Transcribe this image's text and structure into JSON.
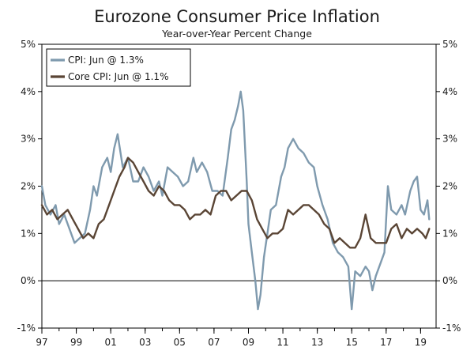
{
  "chart_data": {
    "type": "line",
    "title": "Eurozone Consumer Price Inflation",
    "subtitle": "Year-over-Year Percent Change",
    "xlabel": "",
    "ylabel": "",
    "xlim": [
      1997.0,
      2019.9
    ],
    "ylim": [
      -1,
      5
    ],
    "grid": false,
    "legend_position": "top-left",
    "y_ticks": [
      -1,
      0,
      1,
      2,
      3,
      4,
      5
    ],
    "y_tick_labels": [
      "-1%",
      "0%",
      "1%",
      "2%",
      "3%",
      "4%",
      "5%"
    ],
    "x_ticks": [
      1997,
      1999,
      2001,
      2003,
      2005,
      2007,
      2009,
      2011,
      2013,
      2015,
      2017,
      2019
    ],
    "x_tick_labels": [
      "97",
      "99",
      "01",
      "03",
      "05",
      "07",
      "09",
      "11",
      "13",
      "15",
      "17",
      "19"
    ],
    "series": [
      {
        "name": "CPI: Jun @ 1.3%",
        "color": "#7f9aae",
        "x": [
          1997.0,
          1997.2,
          1997.5,
          1997.8,
          1998.0,
          1998.3,
          1998.6,
          1998.9,
          1999.2,
          1999.5,
          1999.8,
          2000.0,
          2000.2,
          2000.5,
          2000.8,
          2001.0,
          2001.2,
          2001.4,
          2001.7,
          2002.0,
          2002.3,
          2002.6,
          2002.9,
          2003.2,
          2003.5,
          2003.8,
          2004.0,
          2004.3,
          2004.6,
          2004.9,
          2005.2,
          2005.5,
          2005.8,
          2006.0,
          2006.3,
          2006.6,
          2006.9,
          2007.2,
          2007.5,
          2007.8,
          2008.0,
          2008.2,
          2008.4,
          2008.55,
          2008.7,
          2008.9,
          2009.0,
          2009.2,
          2009.4,
          2009.55,
          2009.7,
          2009.9,
          2010.1,
          2010.3,
          2010.6,
          2010.9,
          2011.1,
          2011.3,
          2011.6,
          2011.9,
          2012.2,
          2012.5,
          2012.8,
          2013.0,
          2013.3,
          2013.6,
          2013.9,
          2014.2,
          2014.5,
          2014.8,
          2015.0,
          2015.2,
          2015.5,
          2015.8,
          2016.0,
          2016.2,
          2016.4,
          2016.7,
          2016.9,
          2017.1,
          2017.3,
          2017.6,
          2017.9,
          2018.1,
          2018.4,
          2018.6,
          2018.8,
          2019.0,
          2019.2,
          2019.4,
          2019.5
        ],
        "values": [
          2.0,
          1.6,
          1.4,
          1.6,
          1.2,
          1.4,
          1.1,
          0.8,
          0.9,
          1.0,
          1.5,
          2.0,
          1.8,
          2.4,
          2.6,
          2.3,
          2.8,
          3.1,
          2.4,
          2.6,
          2.1,
          2.1,
          2.4,
          2.2,
          1.9,
          2.1,
          1.8,
          2.4,
          2.3,
          2.2,
          2.0,
          2.1,
          2.6,
          2.3,
          2.5,
          2.3,
          1.9,
          1.9,
          1.8,
          2.6,
          3.2,
          3.4,
          3.7,
          4.0,
          3.6,
          2.1,
          1.2,
          0.6,
          0.0,
          -0.6,
          -0.3,
          0.5,
          1.0,
          1.5,
          1.6,
          2.2,
          2.4,
          2.8,
          3.0,
          2.8,
          2.7,
          2.5,
          2.4,
          2.0,
          1.6,
          1.3,
          0.8,
          0.6,
          0.5,
          0.3,
          -0.6,
          0.2,
          0.1,
          0.3,
          0.2,
          -0.2,
          0.1,
          0.4,
          0.6,
          2.0,
          1.5,
          1.4,
          1.6,
          1.4,
          1.9,
          2.1,
          2.2,
          1.5,
          1.4,
          1.7,
          1.3
        ]
      },
      {
        "name": "Core CPI: Jun @ 1.1%",
        "color": "#5a4535",
        "x": [
          1997.0,
          1997.3,
          1997.6,
          1997.9,
          1998.2,
          1998.5,
          1998.8,
          1999.1,
          1999.4,
          1999.7,
          2000.0,
          2000.3,
          2000.6,
          2000.9,
          2001.2,
          2001.5,
          2001.8,
          2002.0,
          2002.3,
          2002.6,
          2002.9,
          2003.2,
          2003.5,
          2003.8,
          2004.1,
          2004.4,
          2004.7,
          2005.0,
          2005.3,
          2005.6,
          2005.9,
          2006.2,
          2006.5,
          2006.8,
          2007.1,
          2007.4,
          2007.7,
          2008.0,
          2008.3,
          2008.6,
          2008.9,
          2009.2,
          2009.5,
          2009.8,
          2010.1,
          2010.4,
          2010.7,
          2011.0,
          2011.3,
          2011.6,
          2011.9,
          2012.2,
          2012.5,
          2012.8,
          2013.1,
          2013.4,
          2013.7,
          2014.0,
          2014.3,
          2014.6,
          2014.9,
          2015.2,
          2015.5,
          2015.8,
          2016.1,
          2016.4,
          2016.7,
          2017.0,
          2017.3,
          2017.6,
          2017.9,
          2018.2,
          2018.5,
          2018.8,
          2019.1,
          2019.3,
          2019.5
        ],
        "values": [
          1.6,
          1.4,
          1.5,
          1.3,
          1.4,
          1.5,
          1.3,
          1.1,
          0.9,
          1.0,
          0.9,
          1.2,
          1.3,
          1.6,
          1.9,
          2.2,
          2.4,
          2.6,
          2.5,
          2.3,
          2.1,
          1.9,
          1.8,
          2.0,
          1.9,
          1.7,
          1.6,
          1.6,
          1.5,
          1.3,
          1.4,
          1.4,
          1.5,
          1.4,
          1.8,
          1.9,
          1.9,
          1.7,
          1.8,
          1.9,
          1.9,
          1.7,
          1.3,
          1.1,
          0.9,
          1.0,
          1.0,
          1.1,
          1.5,
          1.4,
          1.5,
          1.6,
          1.6,
          1.5,
          1.4,
          1.2,
          1.1,
          0.8,
          0.9,
          0.8,
          0.7,
          0.7,
          0.9,
          1.4,
          0.9,
          0.8,
          0.8,
          0.8,
          1.1,
          1.2,
          0.9,
          1.1,
          1.0,
          1.1,
          1.0,
          0.9,
          1.1
        ]
      }
    ]
  }
}
